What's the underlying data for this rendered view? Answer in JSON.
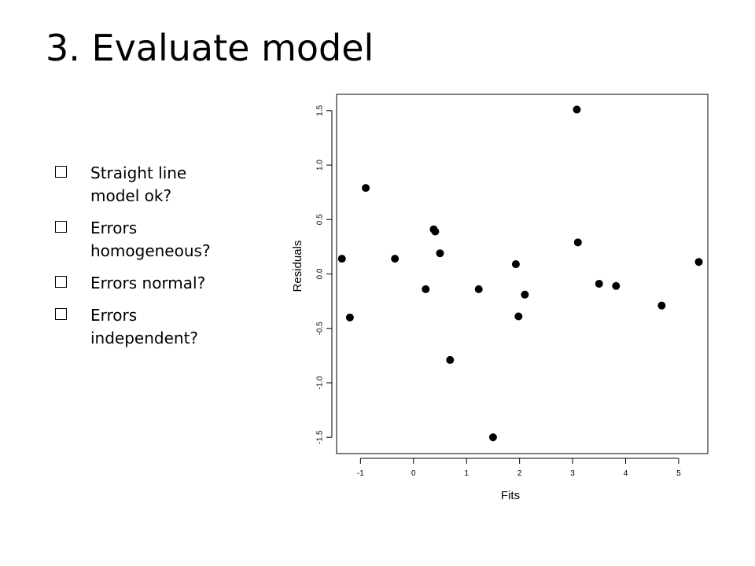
{
  "slide": {
    "title": "3. Evaluate model",
    "checklist": [
      {
        "text": "Straight line model ok?",
        "checked": false
      },
      {
        "text": "Errors homogeneous?",
        "checked": false
      },
      {
        "text": "Errors normal?",
        "checked": false
      },
      {
        "text": "Errors independent?",
        "checked": false
      }
    ]
  },
  "chart_data": {
    "type": "scatter",
    "title": "",
    "xlabel": "Fits",
    "ylabel": "Residuals",
    "xlim": [
      -1.45,
      5.55
    ],
    "ylim": [
      -1.65,
      1.65
    ],
    "xticks": [
      -1,
      0,
      1,
      2,
      3,
      4,
      5
    ],
    "yticks": [
      -1.5,
      -1.0,
      -0.5,
      0.0,
      0.5,
      1.0,
      1.5
    ],
    "ytick_labels": [
      "-1.5",
      "-1.0",
      "-0.5",
      "0.0",
      "0.5",
      "1.0",
      "1.5"
    ],
    "grid": false,
    "points": [
      {
        "x": -1.35,
        "y": 0.14
      },
      {
        "x": -1.2,
        "y": -0.4
      },
      {
        "x": -0.9,
        "y": 0.79
      },
      {
        "x": -0.35,
        "y": 0.14
      },
      {
        "x": 0.23,
        "y": -0.14
      },
      {
        "x": 0.38,
        "y": 0.41
      },
      {
        "x": 0.41,
        "y": 0.39
      },
      {
        "x": 0.5,
        "y": 0.19
      },
      {
        "x": 0.69,
        "y": -0.79
      },
      {
        "x": 1.23,
        "y": -0.14
      },
      {
        "x": 1.5,
        "y": -1.5
      },
      {
        "x": 1.93,
        "y": 0.09
      },
      {
        "x": 1.98,
        "y": -0.39
      },
      {
        "x": 2.1,
        "y": -0.19
      },
      {
        "x": 3.08,
        "y": 1.51
      },
      {
        "x": 3.1,
        "y": 0.29
      },
      {
        "x": 3.5,
        "y": -0.09
      },
      {
        "x": 3.82,
        "y": -0.11
      },
      {
        "x": 4.68,
        "y": -0.29
      },
      {
        "x": 5.38,
        "y": 0.11
      }
    ]
  }
}
